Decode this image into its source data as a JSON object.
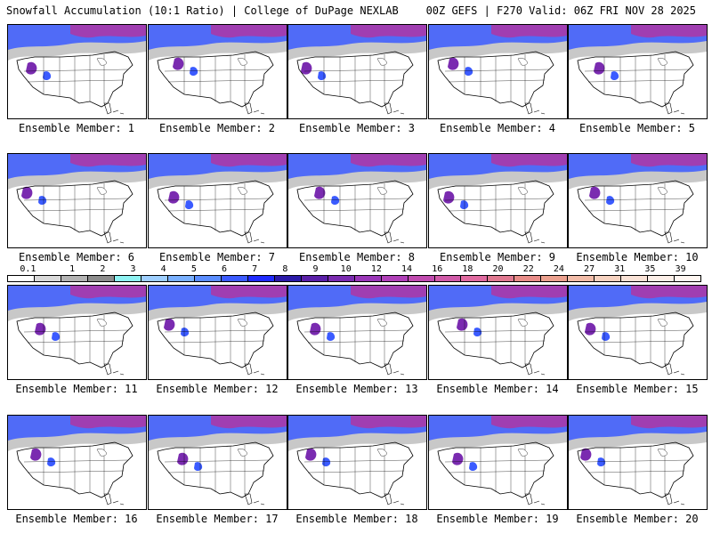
{
  "header": {
    "left_title": "Snowfall Accumulation (10:1 Ratio) | College of DuPage NEXLAB",
    "right_title": "00Z GEFS | F270 Valid: 06Z FRI NOV 28 2025"
  },
  "panels": [
    {
      "label": "Ensemble Member: 1"
    },
    {
      "label": "Ensemble Member: 2"
    },
    {
      "label": "Ensemble Member: 3"
    },
    {
      "label": "Ensemble Member: 4"
    },
    {
      "label": "Ensemble Member: 5"
    },
    {
      "label": "Ensemble Member: 6"
    },
    {
      "label": "Ensemble Member: 7"
    },
    {
      "label": "Ensemble Member: 8"
    },
    {
      "label": "Ensemble Member: 9"
    },
    {
      "label": "Ensemble Member: 10"
    },
    {
      "label": "Ensemble Member: 11"
    },
    {
      "label": "Ensemble Member: 12"
    },
    {
      "label": "Ensemble Member: 13"
    },
    {
      "label": "Ensemble Member: 14"
    },
    {
      "label": "Ensemble Member: 15"
    },
    {
      "label": "Ensemble Member: 16"
    },
    {
      "label": "Ensemble Member: 17"
    },
    {
      "label": "Ensemble Member: 18"
    },
    {
      "label": "Ensemble Member: 19"
    },
    {
      "label": "Ensemble Member: 20"
    }
  ],
  "colorbar": {
    "labels": [
      "0.1",
      "1",
      "2",
      "3",
      "4",
      "5",
      "6",
      "7",
      "8",
      "9",
      "10",
      "12",
      "14",
      "16",
      "18",
      "20",
      "22",
      "24",
      "27",
      "31",
      "35",
      "39"
    ],
    "colors": [
      "#ffffff",
      "#d9d9d9",
      "#b3b3b3",
      "#8c8c8c",
      "#8ef2f2",
      "#9ecfff",
      "#79b0ff",
      "#5a8dff",
      "#3b5bff",
      "#1f2bff",
      "#2b1aa8",
      "#5a1fa8",
      "#7a2bb0",
      "#9a36b8",
      "#b040b8",
      "#c04aaf",
      "#d05aa8",
      "#e06aa0",
      "#e07890",
      "#e88c88",
      "#eba08e",
      "#f2bca8",
      "#f6d2c0",
      "#f9e2d6",
      "#fcefe8",
      "#fff7f2"
    ]
  }
}
